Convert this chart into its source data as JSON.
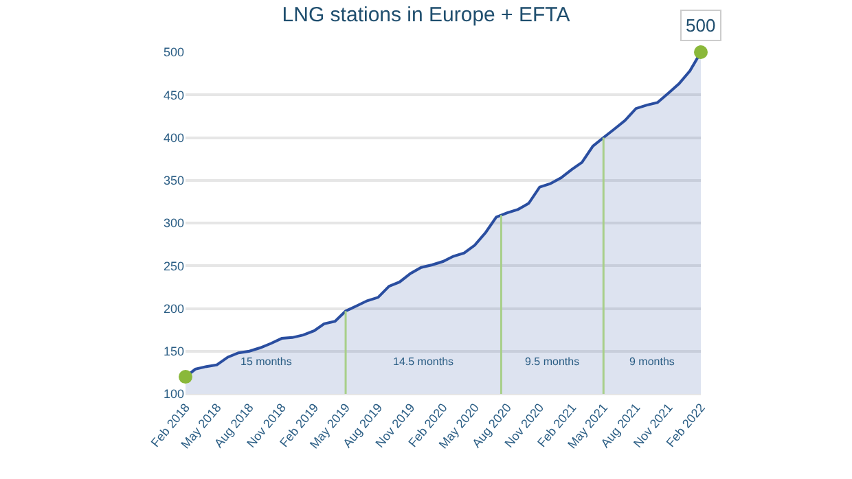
{
  "chart_data": {
    "type": "area",
    "title": "LNG stations in Europe + EFTA",
    "x": [
      "2018-02",
      "2018-03",
      "2018-04",
      "2018-05",
      "2018-06",
      "2018-07",
      "2018-08",
      "2018-09",
      "2018-10",
      "2018-11",
      "2018-12",
      "2019-01",
      "2019-02",
      "2019-03",
      "2019-04",
      "2019-05",
      "2019-06",
      "2019-07",
      "2019-08",
      "2019-09",
      "2019-10",
      "2019-11",
      "2019-12",
      "2020-01",
      "2020-02",
      "2020-03",
      "2020-04",
      "2020-05",
      "2020-06",
      "2020-07",
      "2020-08",
      "2020-09",
      "2020-10",
      "2020-11",
      "2020-12",
      "2021-01",
      "2021-02",
      "2021-03",
      "2021-04",
      "2021-05",
      "2021-06",
      "2021-07",
      "2021-08",
      "2021-09",
      "2021-10",
      "2021-11",
      "2021-12",
      "2022-01",
      "2022-02"
    ],
    "series": [
      {
        "color": "#2a4ea0",
        "values": [
          120,
          129,
          132,
          134,
          143,
          148,
          150,
          154,
          159,
          165,
          166,
          169,
          174,
          182,
          185,
          197,
          203,
          209,
          213,
          226,
          231,
          241,
          248,
          251,
          255,
          261,
          265,
          274,
          289,
          307,
          312,
          316,
          323,
          342,
          346,
          353,
          363,
          371,
          390,
          400,
          410,
          420,
          434,
          438,
          441,
          452,
          463,
          478,
          500
        ]
      },
      {
        "type": "scatter",
        "color": "#8ab83a",
        "x": [
          "2018-02",
          "2022-02"
        ],
        "values": [
          120,
          500
        ],
        "marker": "circle"
      }
    ],
    "xlim": [
      "2018-02",
      "2022-02"
    ],
    "xticks": [
      {
        "value": "2018-02",
        "label": "Feb 2018"
      },
      {
        "value": "2018-05",
        "label": "May 2018"
      },
      {
        "value": "2018-08",
        "label": "Aug 2018"
      },
      {
        "value": "2018-11",
        "label": "Nov 2018"
      },
      {
        "value": "2019-02",
        "label": "Feb 2019"
      },
      {
        "value": "2019-05",
        "label": "May 2019"
      },
      {
        "value": "2019-08",
        "label": "Aug 2019"
      },
      {
        "value": "2019-11",
        "label": "Nov 2019"
      },
      {
        "value": "2020-02",
        "label": "Feb 2020"
      },
      {
        "value": "2020-05",
        "label": "May 2020"
      },
      {
        "value": "2020-08",
        "label": "Aug 2020"
      },
      {
        "value": "2020-11",
        "label": "Nov 2020"
      },
      {
        "value": "2021-02",
        "label": "Feb 2021"
      },
      {
        "value": "2021-05",
        "label": "May 2021"
      },
      {
        "value": "2021-08",
        "label": "Aug 2021"
      },
      {
        "value": "2021-11",
        "label": "Nov 2021"
      },
      {
        "value": "2022-02",
        "label": "Feb 2022"
      }
    ],
    "ylim": [
      100,
      500
    ],
    "yticks": [
      100,
      150,
      200,
      250,
      300,
      350,
      400,
      450,
      500
    ],
    "grid": "y",
    "ref_lines": [
      {
        "axis": "x",
        "value": "2019-05",
        "color": "#a8cf8a"
      },
      {
        "axis": "x",
        "value": "2020-07-15",
        "color": "#a8cf8a"
      },
      {
        "axis": "x",
        "value": "2021-05",
        "color": "#a8cf8a"
      }
    ],
    "annotations": [
      "15 months",
      "14.5 months",
      "9.5 months",
      "9 months",
      {
        "text": "500",
        "x": "2022-02",
        "y": 500
      }
    ]
  }
}
